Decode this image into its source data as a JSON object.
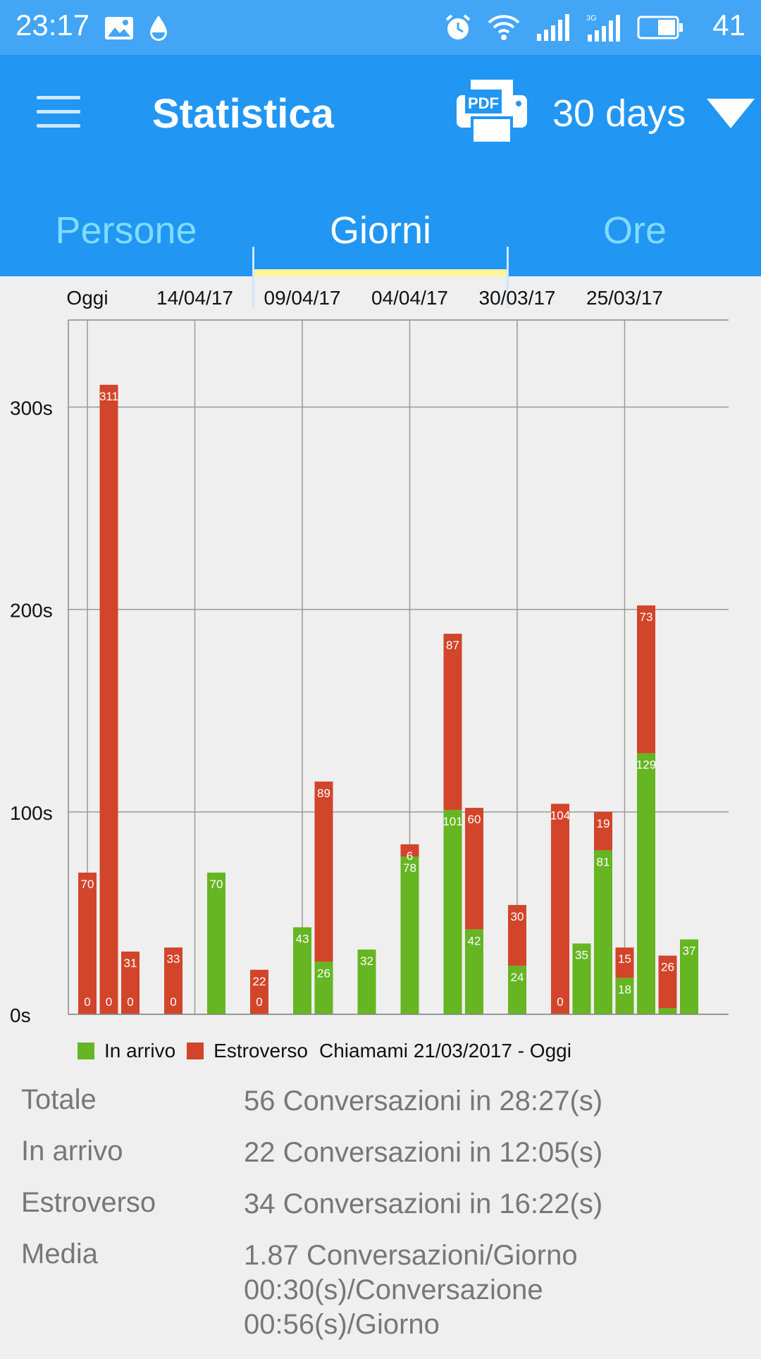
{
  "status_bar": {
    "time": "23:17",
    "battery_pct": "41",
    "left_icons": [
      "image-icon",
      "drop-icon"
    ],
    "right_icons": [
      "alarm-icon",
      "wifi-icon",
      "signal-icon",
      "signal-3g-icon",
      "battery-icon"
    ]
  },
  "appbar": {
    "title": "Statistica",
    "range_label": "30 days",
    "pdf_icon_text": "PDF"
  },
  "tabs": [
    {
      "label": "Persone",
      "active": false
    },
    {
      "label": "Giorni",
      "active": true
    },
    {
      "label": "Ore",
      "active": false
    }
  ],
  "colors": {
    "incoming": "#66b522",
    "outgoing": "#d2452a",
    "appbar": "#2196f3",
    "statusbar": "#42a5f5",
    "tab_indicator": "#fff59d"
  },
  "chart_data": {
    "type": "bar",
    "stacked": true,
    "x_labels_top": [
      "Oggi",
      "14/04/17",
      "09/04/17",
      "04/04/17",
      "30/03/17",
      "25/03/17"
    ],
    "y_ticks": [
      "0s",
      "100s",
      "200s",
      "300s"
    ],
    "ylim": [
      0,
      343
    ],
    "grid": true,
    "series": [
      {
        "name": "In arrivo",
        "values": [
          0,
          0,
          0,
          null,
          0,
          null,
          70,
          null,
          0,
          null,
          43,
          26,
          null,
          32,
          null,
          78,
          null,
          101,
          42,
          null,
          24,
          null,
          0,
          35,
          81,
          18,
          129,
          3,
          37
        ]
      },
      {
        "name": "Estroverso",
        "values": [
          70,
          311,
          31,
          null,
          33,
          null,
          0,
          null,
          22,
          null,
          0,
          89,
          null,
          0,
          null,
          6,
          null,
          87,
          60,
          null,
          30,
          null,
          104,
          0,
          19,
          15,
          73,
          26,
          0
        ]
      }
    ],
    "incoming_labels": [
      "0",
      "0",
      "0",
      "",
      "0",
      "",
      "70",
      "",
      "0",
      "",
      "43",
      "26",
      "",
      "32",
      "",
      "78",
      "",
      "101",
      "42",
      "",
      "24",
      "",
      "0",
      "35",
      "81",
      "18",
      "129",
      "",
      "37"
    ],
    "outgoing_labels": [
      "70",
      "311",
      "31",
      "",
      "33",
      "",
      "",
      "",
      "22",
      "",
      "",
      "89",
      "",
      "",
      "",
      "6",
      "",
      "87",
      "60",
      "",
      "30",
      "",
      "104",
      "",
      "19",
      "15",
      "73",
      "26",
      ""
    ],
    "legend": [
      "In arrivo",
      "Estroverso"
    ],
    "legend_caption": "Chiamami 21/03/2017 - Oggi"
  },
  "stats": [
    {
      "label": "Totale",
      "lines": [
        "56 Conversazioni in 28:27(s)"
      ]
    },
    {
      "label": "In arrivo",
      "lines": [
        "22 Conversazioni in 12:05(s)"
      ]
    },
    {
      "label": "Estroverso",
      "lines": [
        "34 Conversazioni in 16:22(s)"
      ]
    },
    {
      "label": "Media",
      "lines": [
        "1.87 Conversazioni/Giorno",
        "00:30(s)/Conversazione",
        "00:56(s)/Giorno"
      ]
    }
  ]
}
